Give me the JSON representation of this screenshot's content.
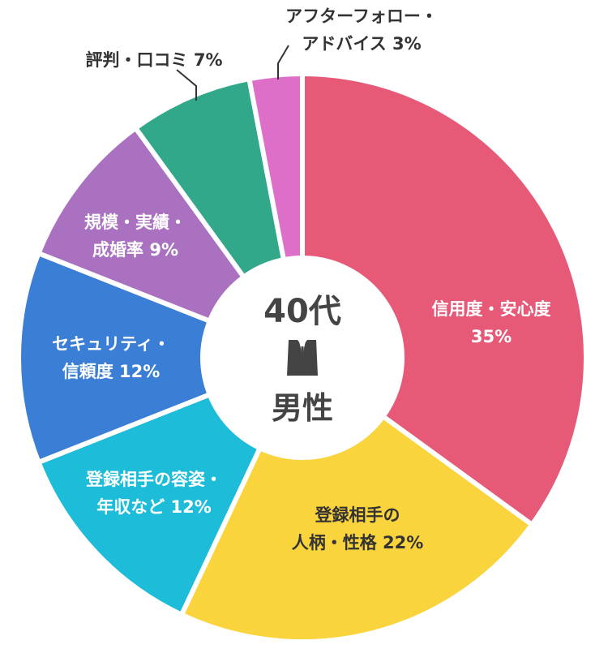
{
  "chart_data": {
    "type": "pie",
    "title": "",
    "center": {
      "line1": "40代",
      "line2": "男性",
      "icon": "suit-icon"
    },
    "slices": [
      {
        "lines": [
          "信用度・安心度",
          "35%"
        ],
        "value": 35,
        "color": "#e65a78",
        "label_color": "#ffffff"
      },
      {
        "lines": [
          "登録相手の",
          "人柄・性格 22%"
        ],
        "value": 22,
        "color": "#fad43c",
        "label_color": "#333333"
      },
      {
        "lines": [
          "登録相手の容姿・",
          "年収など 12%"
        ],
        "value": 12,
        "color": "#1dbcd9",
        "label_color": "#ffffff"
      },
      {
        "lines": [
          "セキュリティ・",
          "信頼度 12%"
        ],
        "value": 12,
        "color": "#3a7fd5",
        "label_color": "#ffffff"
      },
      {
        "lines": [
          "規模・実績・",
          "成婚率 9%"
        ],
        "value": 9,
        "color": "#a971c0",
        "label_color": "#ffffff"
      },
      {
        "lines": [
          "評判・口コミ 7%"
        ],
        "value": 7,
        "color": "#31a88a",
        "label_color": "#333333"
      },
      {
        "lines": [
          "アフターフォロー・",
          "アドバイス 3%"
        ],
        "value": 3,
        "color": "#de6fc9",
        "label_color": "#333333"
      }
    ]
  }
}
